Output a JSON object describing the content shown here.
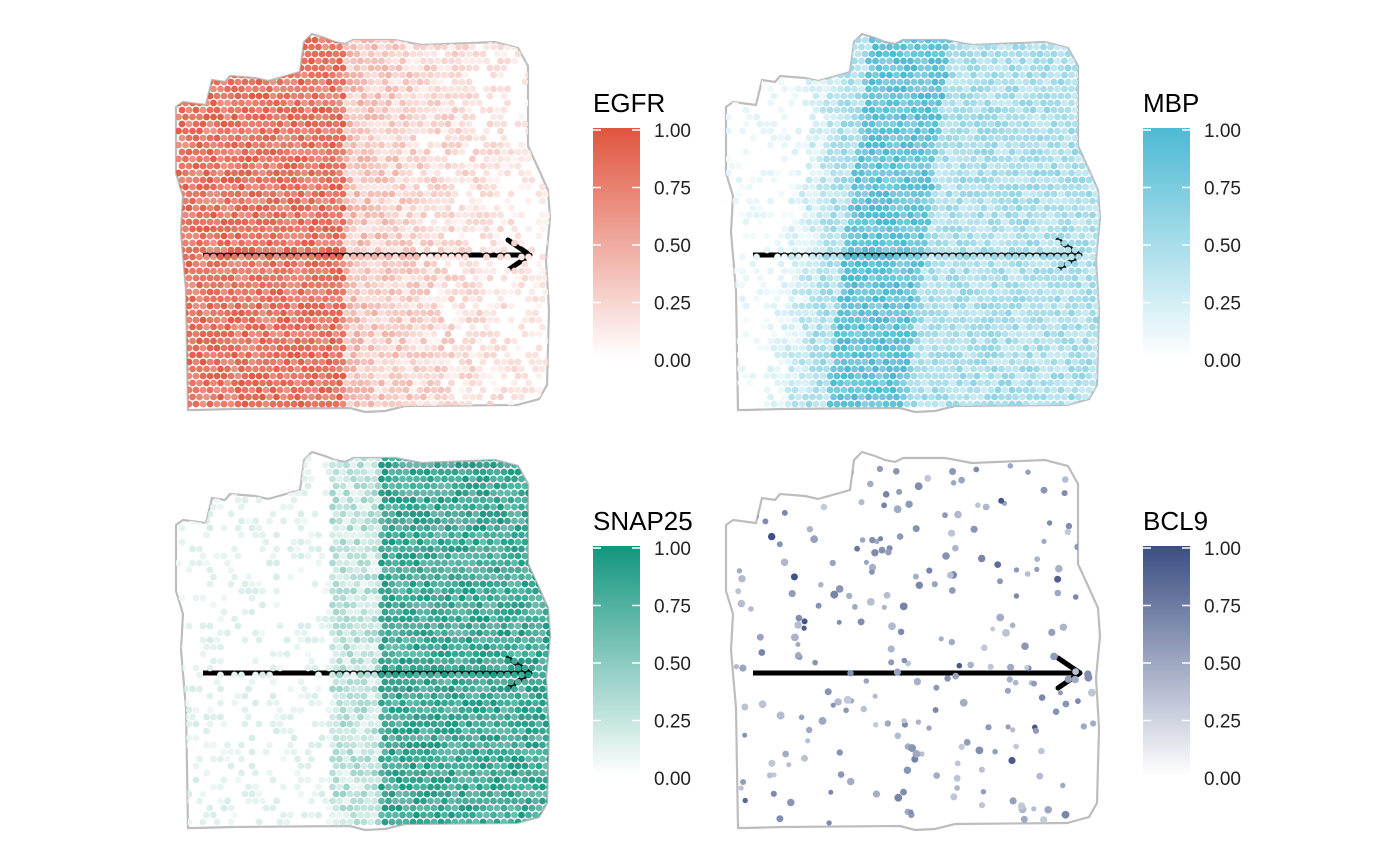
{
  "figure": {
    "panels": [
      {
        "gene": "EGFR",
        "color": "#E0553E"
      },
      {
        "gene": "MBP",
        "color": "#4DBAD3"
      },
      {
        "gene": "SNAP25",
        "color": "#13957E"
      },
      {
        "gene": "BCL9",
        "color": "#3B4E82"
      }
    ],
    "outline_color": "#BDBDBD",
    "arrow_color": "#000000"
  },
  "chart_data": [
    {
      "type": "scatter",
      "title": "",
      "colorbar": {
        "title": "EGFR",
        "range": [
          0,
          1
        ],
        "ticks": [
          "1.00",
          "0.75",
          "0.50",
          "0.25",
          "0.00"
        ]
      },
      "pattern": {
        "description_values": {
          "left_region_mean": 0.85,
          "right_region_mean": 0.35
        }
      },
      "arrow": {
        "direction": "left-to-right"
      }
    },
    {
      "type": "scatter",
      "title": "",
      "colorbar": {
        "title": "MBP",
        "range": [
          0,
          1
        ],
        "ticks": [
          "1.00",
          "0.75",
          "0.50",
          "0.25",
          "0.00"
        ]
      },
      "pattern": {
        "description_values": {
          "left_region_mean": 0.05,
          "band_mean": 0.85,
          "right_region_mean": 0.45
        }
      },
      "arrow": {
        "direction": "left-to-right"
      }
    },
    {
      "type": "scatter",
      "title": "",
      "colorbar": {
        "title": "SNAP25",
        "range": [
          0,
          1
        ],
        "ticks": [
          "1.00",
          "0.75",
          "0.50",
          "0.25",
          "0.00"
        ]
      },
      "pattern": {
        "description_values": {
          "left_region_mean": 0.02,
          "transition_mean": 0.25,
          "right_region_mean": 0.8
        }
      },
      "arrow": {
        "direction": "left-to-right"
      }
    },
    {
      "type": "scatter",
      "title": "",
      "colorbar": {
        "title": "BCL9",
        "range": [
          0,
          1
        ],
        "ticks": [
          "1.00",
          "0.75",
          "0.50",
          "0.25",
          "0.00"
        ]
      },
      "pattern": {
        "description_values": {
          "sparse_spot_mean": 0.45
        }
      },
      "arrow": {
        "direction": "left-to-right"
      }
    }
  ]
}
